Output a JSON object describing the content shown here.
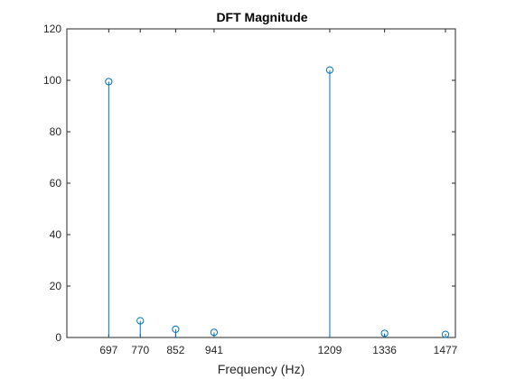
{
  "chart_data": {
    "type": "stem",
    "title": "DFT Magnitude",
    "xlabel": "Frequency (Hz)",
    "ylabel": "",
    "xlim": [
      600,
      1500
    ],
    "ylim": [
      0,
      120
    ],
    "xticks": [
      697,
      770,
      852,
      941,
      1209,
      1336,
      1477
    ],
    "yticks": [
      0,
      20,
      40,
      60,
      80,
      100,
      120
    ],
    "grid": false,
    "series": [
      {
        "x": [
          697,
          770,
          852,
          941,
          1209,
          1336,
          1477
        ],
        "y": [
          99.5,
          6.5,
          3.2,
          2.0,
          104.0,
          1.6,
          1.2
        ],
        "color": "#0072BD",
        "marker": "circle-open"
      }
    ]
  }
}
